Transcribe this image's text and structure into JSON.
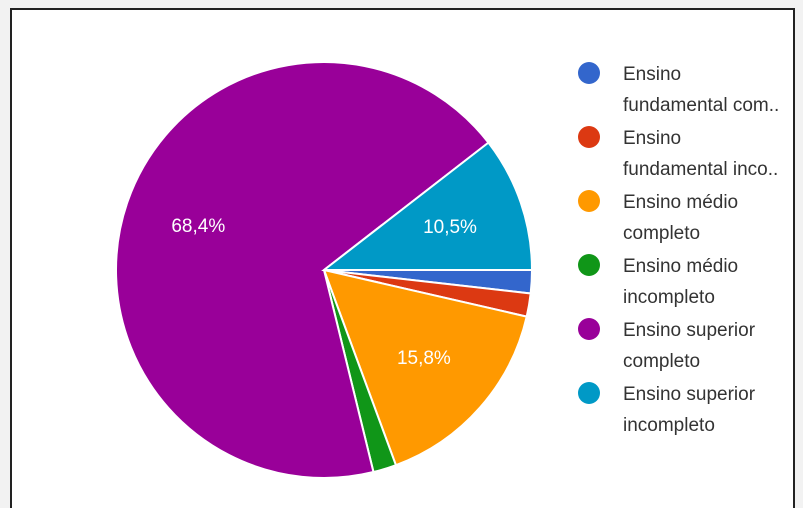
{
  "chart_data": {
    "type": "pie",
    "slices": [
      {
        "label": "Ensino fundamental com...",
        "value": 1.8,
        "color": "#3366cc",
        "display_label": ""
      },
      {
        "label": "Ensino fundamental inco...",
        "value": 1.8,
        "color": "#dc3912",
        "display_label": ""
      },
      {
        "label": "Ensino médio completo",
        "value": 15.8,
        "color": "#ff9900",
        "display_label": "15,8%"
      },
      {
        "label": "Ensino médio incompleto",
        "value": 1.8,
        "color": "#109618",
        "display_label": ""
      },
      {
        "label": "Ensino superior completo",
        "value": 68.4,
        "color": "#990099",
        "display_label": "68,4%"
      },
      {
        "label": "Ensino superior incompleto",
        "value": 10.5,
        "color": "#0099c6",
        "display_label": "10,5%"
      }
    ],
    "legend_position": "right"
  },
  "legend": [
    {
      "line1": "Ensino",
      "line2": "fundamental com..",
      "color": "#3366cc"
    },
    {
      "line1": "Ensino",
      "line2": "fundamental inco..",
      "color": "#dc3912"
    },
    {
      "line1": "Ensino médio",
      "line2": "completo",
      "color": "#ff9900"
    },
    {
      "line1": "Ensino médio",
      "line2": "incompleto",
      "color": "#109618"
    },
    {
      "line1": "Ensino superior",
      "line2": "completo",
      "color": "#990099"
    },
    {
      "line1": "Ensino superior",
      "line2": "incompleto",
      "color": "#0099c6"
    }
  ]
}
